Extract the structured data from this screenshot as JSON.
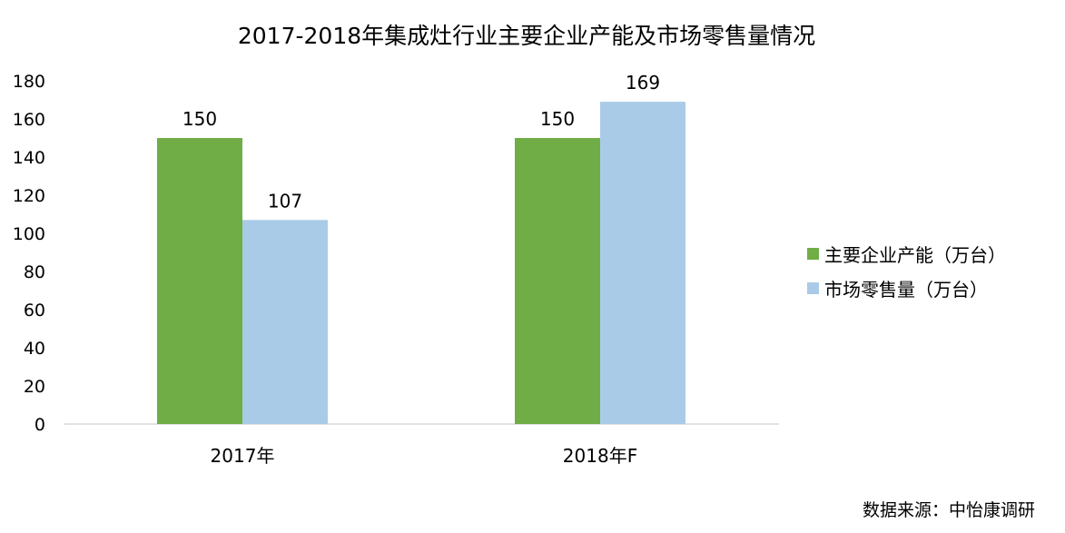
{
  "chart_data": {
    "type": "bar",
    "title": "2017-2018年集成灶行业主要企业产能及市场零售量情况",
    "categories": [
      "2017年",
      "2018年F"
    ],
    "series": [
      {
        "name": "主要企业产能（万台）",
        "values": [
          150,
          150
        ],
        "color": "#70ad47"
      },
      {
        "name": "市场零售量（万台）",
        "values": [
          107,
          169
        ],
        "color": "#a9cbe8"
      }
    ],
    "ylim": [
      0,
      180
    ],
    "yticks": [
      0,
      20,
      40,
      60,
      80,
      100,
      120,
      140,
      160,
      180
    ],
    "grid": false,
    "legend_position": "right",
    "show_data_labels": true
  },
  "source": "数据来源：中怡康调研"
}
